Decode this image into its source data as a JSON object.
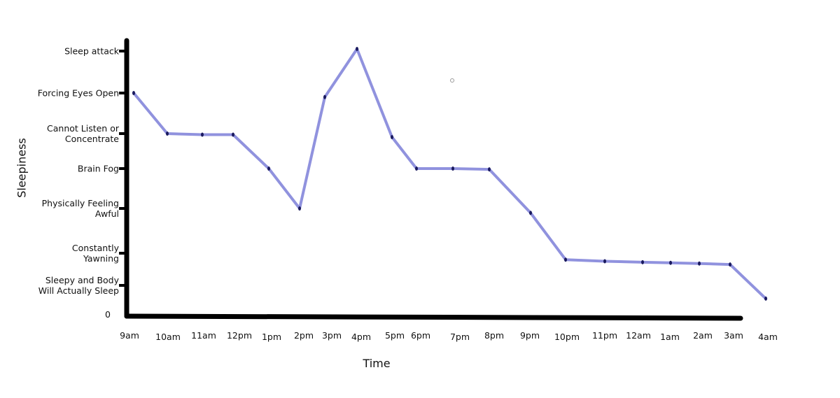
{
  "chart_data": {
    "type": "line",
    "x_label": "Time",
    "y_label": "Sleepiness",
    "categories": [
      "9am",
      "10am",
      "11am",
      "12pm",
      "1pm",
      "2pm",
      "3pm",
      "4pm",
      "5pm",
      "6pm",
      "7pm",
      "8pm",
      "9pm",
      "10pm",
      "11pm",
      "12am",
      "1am",
      "2am",
      "3am",
      "4am"
    ],
    "series": [
      {
        "color": "#7d7fd8",
        "values": [
          6,
          5,
          4.97,
          4.97,
          4,
          3,
          5.9,
          7.05,
          4.9,
          4,
          4,
          3.98,
          2.9,
          1.8,
          1.75,
          1.72,
          1.7,
          1.68,
          1.65,
          0.55
        ]
      }
    ],
    "ylim": [
      0,
      7.3
    ],
    "yticks": [
      0,
      {
        "value": 1,
        "label": "Sleepy and Body Will Actually Sleep"
      },
      {
        "value": 2,
        "label": "Constantly Yawning"
      },
      {
        "value": 3,
        "label": "Physically Feeling Awful"
      },
      {
        "value": 4,
        "label": "Brain Fog"
      },
      {
        "value": 5,
        "label": "Cannot Listen or Concentrate"
      },
      {
        "value": 6,
        "label": "Forcing Eyes Open"
      },
      {
        "value": 7,
        "label": "Sleep attack"
      }
    ]
  }
}
